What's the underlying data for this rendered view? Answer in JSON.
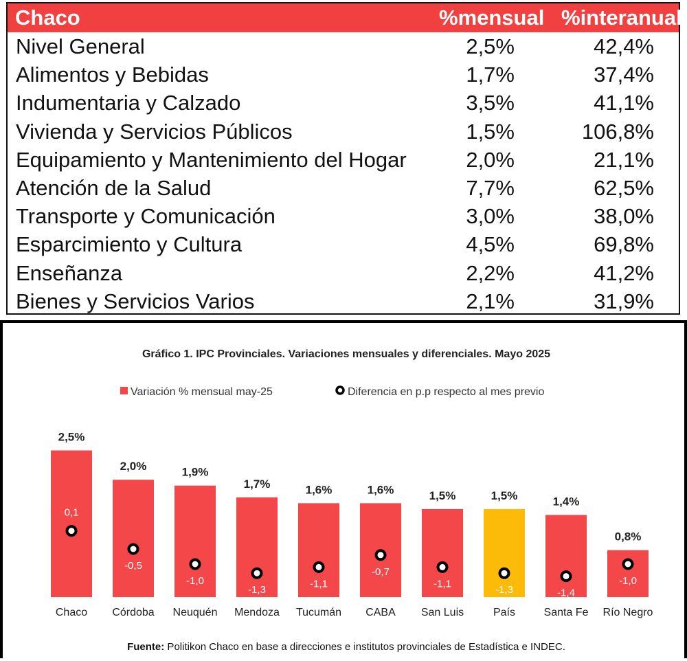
{
  "table": {
    "header": {
      "name": "Chaco",
      "monthly": "%mensual",
      "yoy": "%interanual"
    },
    "rows": [
      {
        "name": "Nivel General",
        "monthly": "2,5%",
        "yoy": "42,4%"
      },
      {
        "name": "Alimentos y Bebidas",
        "monthly": "1,7%",
        "yoy": "37,4%"
      },
      {
        "name": "Indumentaria y Calzado",
        "monthly": "3,5%",
        "yoy": "41,1%"
      },
      {
        "name": "Vivienda y Servicios Públicos",
        "monthly": "1,5%",
        "yoy": "106,8%"
      },
      {
        "name": "Equipamiento y Mantenimiento del Hogar",
        "monthly": "2,0%",
        "yoy": "21,1%"
      },
      {
        "name": "Atención de la Salud",
        "monthly": "7,7%",
        "yoy": "62,5%"
      },
      {
        "name": "Transporte y Comunicación",
        "monthly": "3,0%",
        "yoy": "38,0%"
      },
      {
        "name": "Esparcimiento y Cultura",
        "monthly": "4,5%",
        "yoy": "69,8%"
      },
      {
        "name": "Enseñanza",
        "monthly": "2,2%",
        "yoy": "41,2%"
      },
      {
        "name": "Bienes y Servicios Varios",
        "monthly": "2,1%",
        "yoy": "31,9%"
      }
    ]
  },
  "chart_data": {
    "type": "bar",
    "title": "Gráfico 1. IPC Provinciales. Variaciones mensuales y diferenciales. Mayo 2025",
    "categories": [
      "Chaco",
      "Córdoba",
      "Neuquén",
      "Mendoza",
      "Tucumán",
      "CABA",
      "San Luis",
      "País",
      "Santa Fe",
      "Río Negro"
    ],
    "series": [
      {
        "name": "Variación % mensual may-25",
        "type": "bar",
        "values": [
          2.5,
          2.0,
          1.9,
          1.7,
          1.6,
          1.6,
          1.5,
          1.5,
          1.4,
          0.8
        ],
        "labels": [
          "2,5%",
          "2,0%",
          "1,9%",
          "1,7%",
          "1,6%",
          "1,6%",
          "1,5%",
          "1,5%",
          "1,4%",
          "0,8%"
        ]
      },
      {
        "name": "Diferencia en p.p respecto al mes previo",
        "type": "scatter",
        "values": [
          0.1,
          -0.5,
          -1.0,
          -1.3,
          -1.1,
          -0.7,
          -1.1,
          -1.3,
          -1.4,
          -1.0
        ],
        "labels": [
          "0,1",
          "-0,5",
          "-1,0",
          "-1,3",
          "-1,1",
          "-0,7",
          "-1,1",
          "-1,3",
          "-1,4",
          "-1,0"
        ]
      }
    ],
    "highlight_category": "País",
    "colors": {
      "bar": "#f3474a",
      "highlight": "#fcbb08",
      "marker_fill": "#ffffff",
      "marker_stroke": "#000000"
    },
    "legend_position": "top",
    "grid": false,
    "source_label": "Fuente:",
    "source_text": "Politikon Chaco en base a direcciones e institutos provinciales de Estadística e INDEC."
  }
}
